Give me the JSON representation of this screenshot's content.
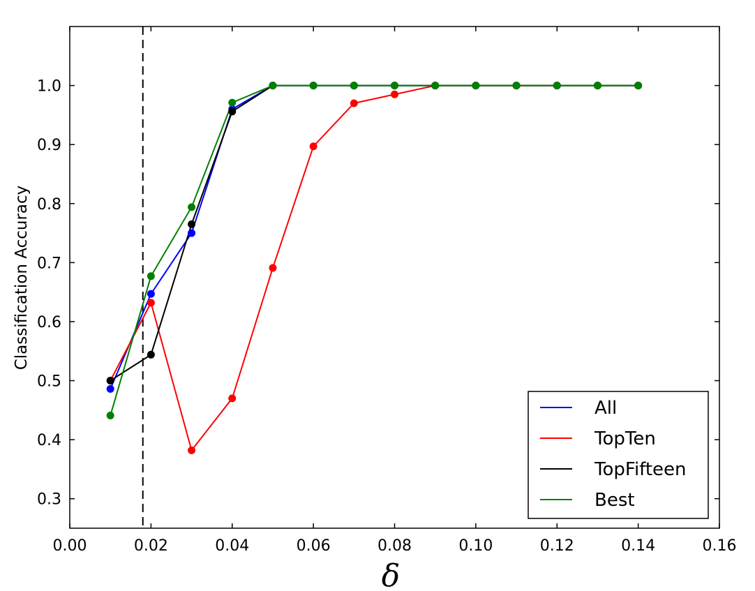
{
  "chart_data": {
    "type": "line",
    "title": "",
    "xlabel": "δ",
    "ylabel": "Classification Accuracy",
    "xlim": [
      0.0,
      0.16
    ],
    "ylim": [
      0.25,
      1.1
    ],
    "xticks": [
      "0.00",
      "0.02",
      "0.04",
      "0.06",
      "0.08",
      "0.10",
      "0.12",
      "0.14",
      "0.16"
    ],
    "yticks": [
      "0.3",
      "0.4",
      "0.5",
      "0.6",
      "0.7",
      "0.8",
      "0.9",
      "1.0"
    ],
    "grid": false,
    "legend_position": "lower-right",
    "vline": {
      "x": 0.018,
      "style": "dashed",
      "color": "#000000"
    },
    "x": [
      0.01,
      0.02,
      0.03,
      0.04,
      0.05,
      0.06,
      0.07,
      0.08,
      0.09,
      0.1,
      0.11,
      0.12,
      0.13,
      0.14
    ],
    "series": [
      {
        "name": "All",
        "color": "#0000ff",
        "values": [
          0.486,
          0.647,
          0.75,
          0.96,
          1.0,
          1.0,
          1.0,
          1.0,
          1.0,
          1.0,
          1.0,
          1.0,
          1.0,
          1.0
        ]
      },
      {
        "name": "TopTen",
        "color": "#ff0000",
        "values": [
          0.5,
          0.632,
          0.382,
          0.47,
          0.691,
          0.897,
          0.97,
          0.985,
          1.0,
          1.0,
          1.0,
          1.0,
          1.0,
          1.0
        ]
      },
      {
        "name": "TopFifteen",
        "color": "#000000",
        "values": [
          0.5,
          0.544,
          0.765,
          0.956,
          1.0,
          1.0,
          1.0,
          1.0,
          1.0,
          1.0,
          1.0,
          1.0,
          1.0,
          1.0
        ]
      },
      {
        "name": "Best",
        "color": "#008000",
        "values": [
          0.441,
          0.677,
          0.794,
          0.971,
          1.0,
          1.0,
          1.0,
          1.0,
          1.0,
          1.0,
          1.0,
          1.0,
          1.0,
          1.0
        ]
      }
    ]
  }
}
